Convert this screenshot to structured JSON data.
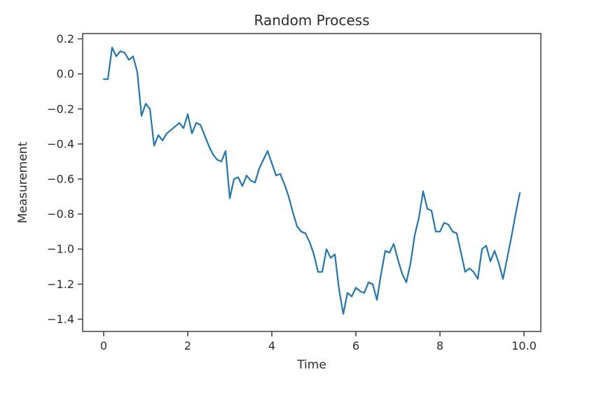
{
  "figure": {
    "title": "Random Process",
    "background": "#ffffff"
  },
  "chart_data": {
    "type": "line",
    "title": "Random Process",
    "xlabel": "Time",
    "ylabel": "Measurement",
    "line_color": "#1f77b4",
    "axis_color": "#4a4a4a",
    "grid": false,
    "legend": null,
    "x_ticks": [
      0,
      2,
      4,
      6,
      8,
      10
    ],
    "y_ticks": [
      0.2,
      0.0,
      -0.2,
      -0.4,
      -0.6,
      -0.8,
      -1.0,
      -1.2,
      -1.4
    ],
    "xlim": [
      -0.5,
      10.4
    ],
    "ylim": [
      -1.47,
      0.23
    ],
    "x_start": 0,
    "x_step": 0.1,
    "values": [
      -0.03,
      -0.03,
      0.15,
      0.1,
      0.13,
      0.12,
      0.08,
      0.1,
      0.01,
      -0.24,
      -0.17,
      -0.2,
      -0.41,
      -0.35,
      -0.38,
      -0.34,
      -0.32,
      -0.3,
      -0.28,
      -0.31,
      -0.23,
      -0.34,
      -0.28,
      -0.29,
      -0.35,
      -0.41,
      -0.46,
      -0.49,
      -0.5,
      -0.44,
      -0.71,
      -0.6,
      -0.59,
      -0.64,
      -0.58,
      -0.61,
      -0.62,
      -0.54,
      -0.49,
      -0.44,
      -0.51,
      -0.58,
      -0.57,
      -0.63,
      -0.7,
      -0.79,
      -0.87,
      -0.9,
      -0.91,
      -0.96,
      -1.03,
      -1.13,
      -1.13,
      -1.0,
      -1.05,
      -1.03,
      -1.23,
      -1.37,
      -1.25,
      -1.27,
      -1.22,
      -1.24,
      -1.25,
      -1.19,
      -1.2,
      -1.29,
      -1.14,
      -1.01,
      -1.02,
      -0.97,
      -1.06,
      -1.14,
      -1.19,
      -1.08,
      -0.92,
      -0.82,
      -0.67,
      -0.77,
      -0.78,
      -0.9,
      -0.9,
      -0.85,
      -0.86,
      -0.9,
      -0.91,
      -1.02,
      -1.13,
      -1.11,
      -1.13,
      -1.17,
      -1.0,
      -0.98,
      -1.07,
      -1.01,
      -1.08,
      -1.17,
      -1.05,
      -0.93,
      -0.8,
      -0.68
    ]
  }
}
